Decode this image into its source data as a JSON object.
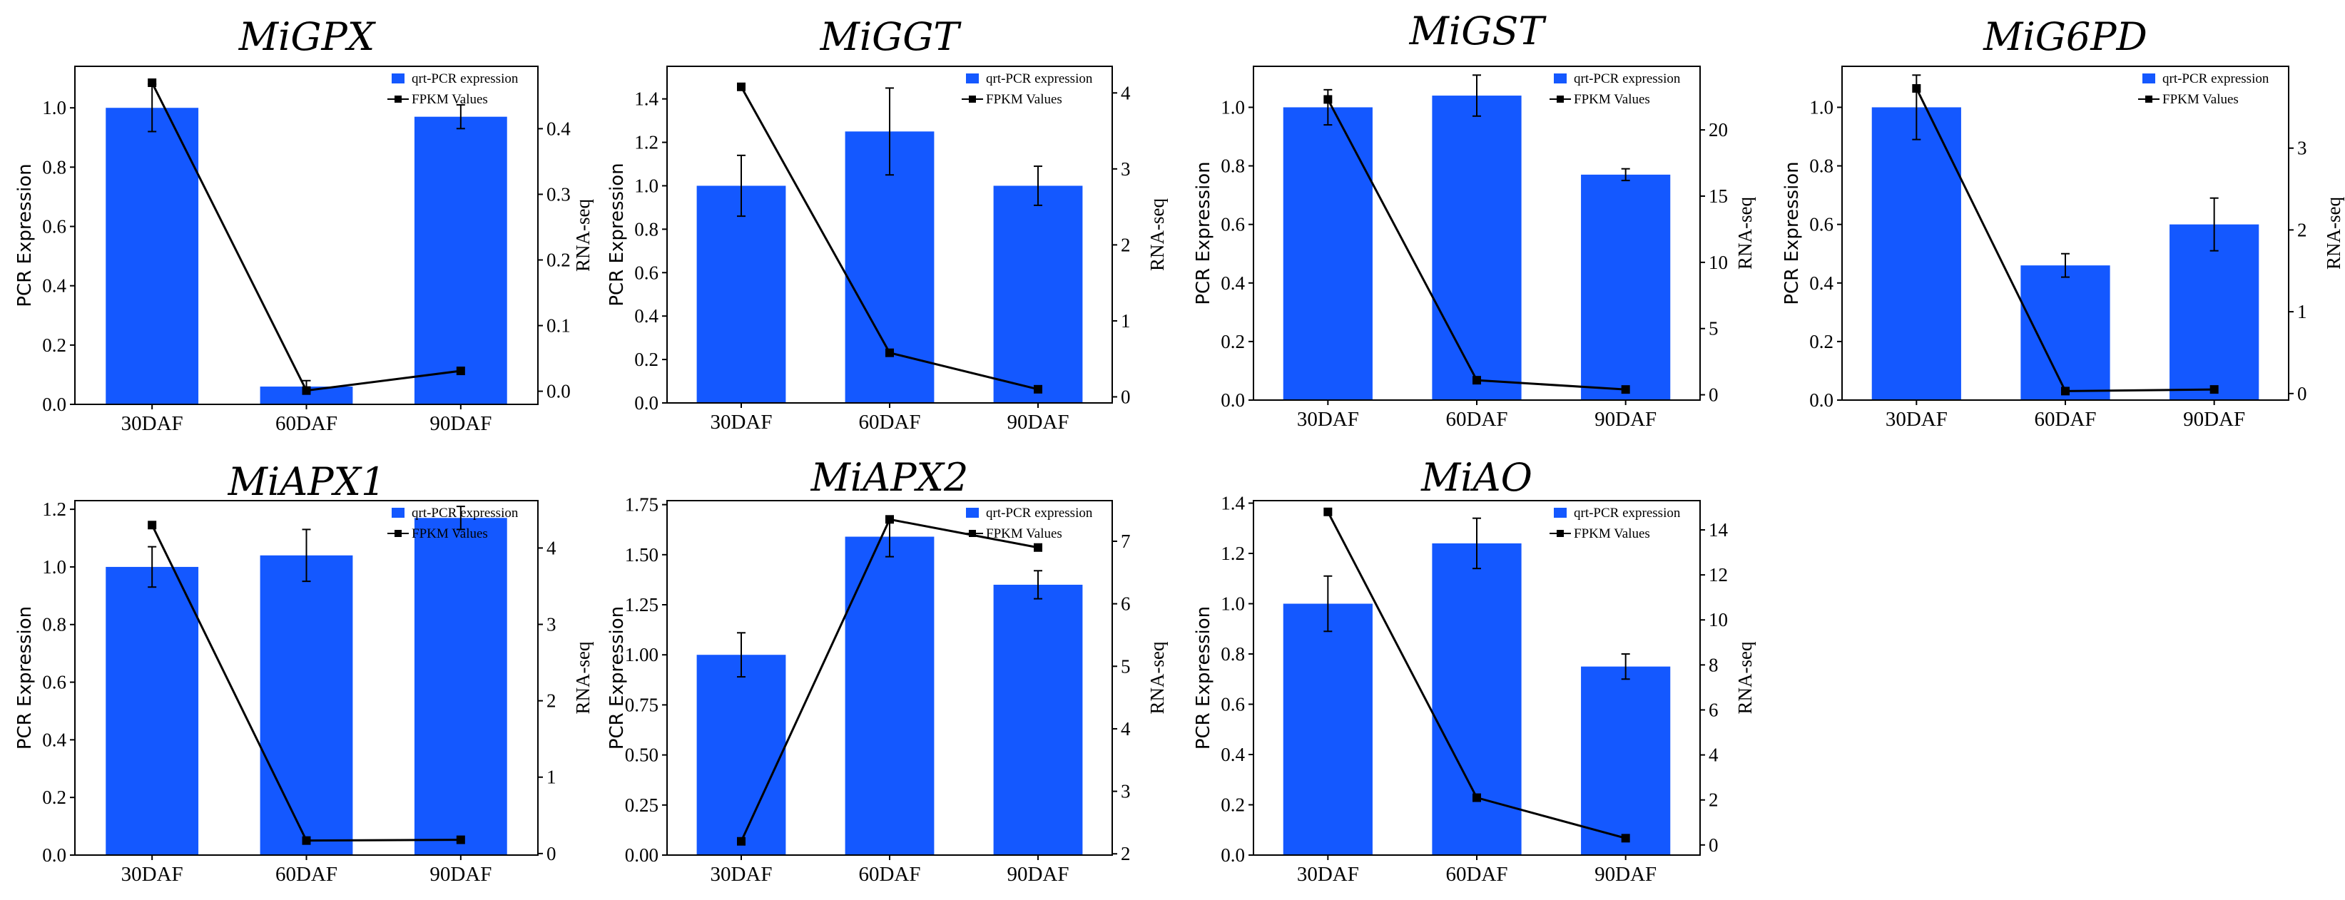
{
  "colors": {
    "bar": "#1458FF",
    "line": "#000000"
  },
  "chart_data": [
    {
      "type": "bar+line",
      "title": "MiGPX",
      "categories": [
        "30DAF",
        "60DAF",
        "90DAF"
      ],
      "ylabel": "PCR Expression",
      "y2label": "RNA-seq",
      "ylim": [
        0,
        1.14
      ],
      "y2lim": [
        -0.02,
        0.495
      ],
      "yticks": [
        "0.0",
        "0.2",
        "0.4",
        "0.6",
        "0.8",
        "1.0"
      ],
      "y2ticks": [
        "0.0",
        "0.1",
        "0.2",
        "0.3",
        "0.4"
      ],
      "legend": [
        "qrt-PCR expression",
        "FPKM Values"
      ],
      "series": [
        {
          "name": "qrt-PCR expression",
          "values": [
            1.0,
            0.06,
            0.97
          ],
          "errors": [
            0.08,
            0.02,
            0.04
          ]
        },
        {
          "name": "FPKM Values",
          "values": [
            0.47,
            0.001,
            0.031
          ]
        }
      ]
    },
    {
      "type": "bar+line",
      "title": "MiGGT",
      "categories": [
        "30DAF",
        "60DAF",
        "90DAF"
      ],
      "ylabel": "PCR Expression",
      "y2label": "RNA-seq",
      "ylim": [
        0,
        1.55
      ],
      "y2lim": [
        -0.08,
        4.35
      ],
      "yticks": [
        "0.0",
        "0.2",
        "0.4",
        "0.6",
        "0.8",
        "1.0",
        "1.2",
        "1.4"
      ],
      "y2ticks": [
        "0",
        "1",
        "2",
        "3",
        "4"
      ],
      "legend": [
        "qrt-PCR expression",
        "FPKM Values"
      ],
      "series": [
        {
          "name": "qrt-PCR expression",
          "values": [
            1.0,
            1.25,
            1.0
          ],
          "errors": [
            0.14,
            0.2,
            0.09
          ]
        },
        {
          "name": "FPKM Values",
          "values": [
            4.08,
            0.58,
            0.1
          ]
        }
      ]
    },
    {
      "type": "bar+line",
      "title": "MiGST",
      "categories": [
        "30DAF",
        "60DAF",
        "90DAF"
      ],
      "ylabel": "PCR Expression",
      "y2label": "RNA-seq",
      "ylim": [
        0,
        1.14
      ],
      "y2lim": [
        -0.4,
        24.8
      ],
      "yticks": [
        "0.0",
        "0.2",
        "0.4",
        "0.6",
        "0.8",
        "1.0"
      ],
      "y2ticks": [
        "0",
        "5",
        "10",
        "15",
        "20"
      ],
      "legend": [
        "qrt-PCR expression",
        "FPKM Values"
      ],
      "series": [
        {
          "name": "qrt-PCR expression",
          "values": [
            1.0,
            1.04,
            0.77
          ],
          "errors": [
            0.06,
            0.07,
            0.02
          ]
        },
        {
          "name": "FPKM Values",
          "values": [
            22.3,
            1.1,
            0.4
          ]
        }
      ]
    },
    {
      "type": "bar+line",
      "title": "MiG6PD",
      "categories": [
        "30DAF",
        "60DAF",
        "90DAF"
      ],
      "ylabel": "PCR Expression",
      "y2label": "RNA-seq",
      "ylim": [
        0,
        1.14
      ],
      "y2lim": [
        -0.08,
        4.0
      ],
      "yticks": [
        "0.0",
        "0.2",
        "0.4",
        "0.6",
        "0.8",
        "1.0"
      ],
      "y2ticks": [
        "0",
        "1",
        "2",
        "3"
      ],
      "legend": [
        "qrt-PCR expression",
        "FPKM Values"
      ],
      "series": [
        {
          "name": "qrt-PCR expression",
          "values": [
            1.0,
            0.46,
            0.6
          ],
          "errors": [
            0.11,
            0.04,
            0.09
          ]
        },
        {
          "name": "FPKM Values",
          "values": [
            3.73,
            0.03,
            0.05
          ]
        }
      ]
    },
    {
      "type": "bar+line",
      "title": "MiAPX1",
      "categories": [
        "30DAF",
        "60DAF",
        "90DAF"
      ],
      "ylabel": "PCR Expression",
      "y2label": "RNA-seq",
      "ylim": [
        0,
        1.23
      ],
      "y2lim": [
        -0.02,
        4.62
      ],
      "yticks": [
        "0.0",
        "0.2",
        "0.4",
        "0.6",
        "0.8",
        "1.0",
        "1.2"
      ],
      "y2ticks": [
        "0",
        "1",
        "2",
        "3",
        "4"
      ],
      "legend": [
        "qrt-PCR expression",
        "FPKM Values"
      ],
      "series": [
        {
          "name": "qrt-PCR expression",
          "values": [
            1.0,
            1.04,
            1.17
          ],
          "errors": [
            0.07,
            0.09,
            0.04
          ]
        },
        {
          "name": "FPKM Values",
          "values": [
            4.3,
            0.17,
            0.18
          ]
        }
      ]
    },
    {
      "type": "bar+line",
      "title": "MiAPX2",
      "categories": [
        "30DAF",
        "60DAF",
        "90DAF"
      ],
      "ylabel": "PCR Expression",
      "y2label": "RNA-seq",
      "ylim": [
        0,
        1.77
      ],
      "y2lim": [
        1.98,
        7.65
      ],
      "yticks": [
        "0.00",
        "0.25",
        "0.50",
        "0.75",
        "1.00",
        "1.25",
        "1.50",
        "1.75"
      ],
      "y2ticks": [
        "2",
        "3",
        "4",
        "5",
        "6",
        "7"
      ],
      "legend": [
        "qrt-PCR expression",
        "FPKM Values"
      ],
      "series": [
        {
          "name": "qrt-PCR expression",
          "values": [
            1.0,
            1.59,
            1.35
          ],
          "errors": [
            0.11,
            0.1,
            0.07
          ]
        },
        {
          "name": "FPKM Values",
          "values": [
            2.2,
            7.35,
            6.9
          ]
        }
      ]
    },
    {
      "type": "bar+line",
      "title": "MiAO",
      "categories": [
        "30DAF",
        "60DAF",
        "90DAF"
      ],
      "ylabel": "PCR Expression",
      "y2label": "RNA-seq",
      "ylim": [
        0,
        1.41
      ],
      "y2lim": [
        -0.45,
        15.3
      ],
      "yticks": [
        "0.0",
        "0.2",
        "0.4",
        "0.6",
        "0.8",
        "1.0",
        "1.2",
        "1.4"
      ],
      "y2ticks": [
        "0",
        "2",
        "4",
        "6",
        "8",
        "10",
        "12",
        "14"
      ],
      "legend": [
        "qrt-PCR expression",
        "FPKM Values"
      ],
      "series": [
        {
          "name": "qrt-PCR expression",
          "values": [
            1.0,
            1.24,
            0.75
          ],
          "errors": [
            0.11,
            0.1,
            0.05
          ]
        },
        {
          "name": "FPKM Values",
          "values": [
            14.8,
            2.1,
            0.3
          ]
        }
      ]
    }
  ]
}
